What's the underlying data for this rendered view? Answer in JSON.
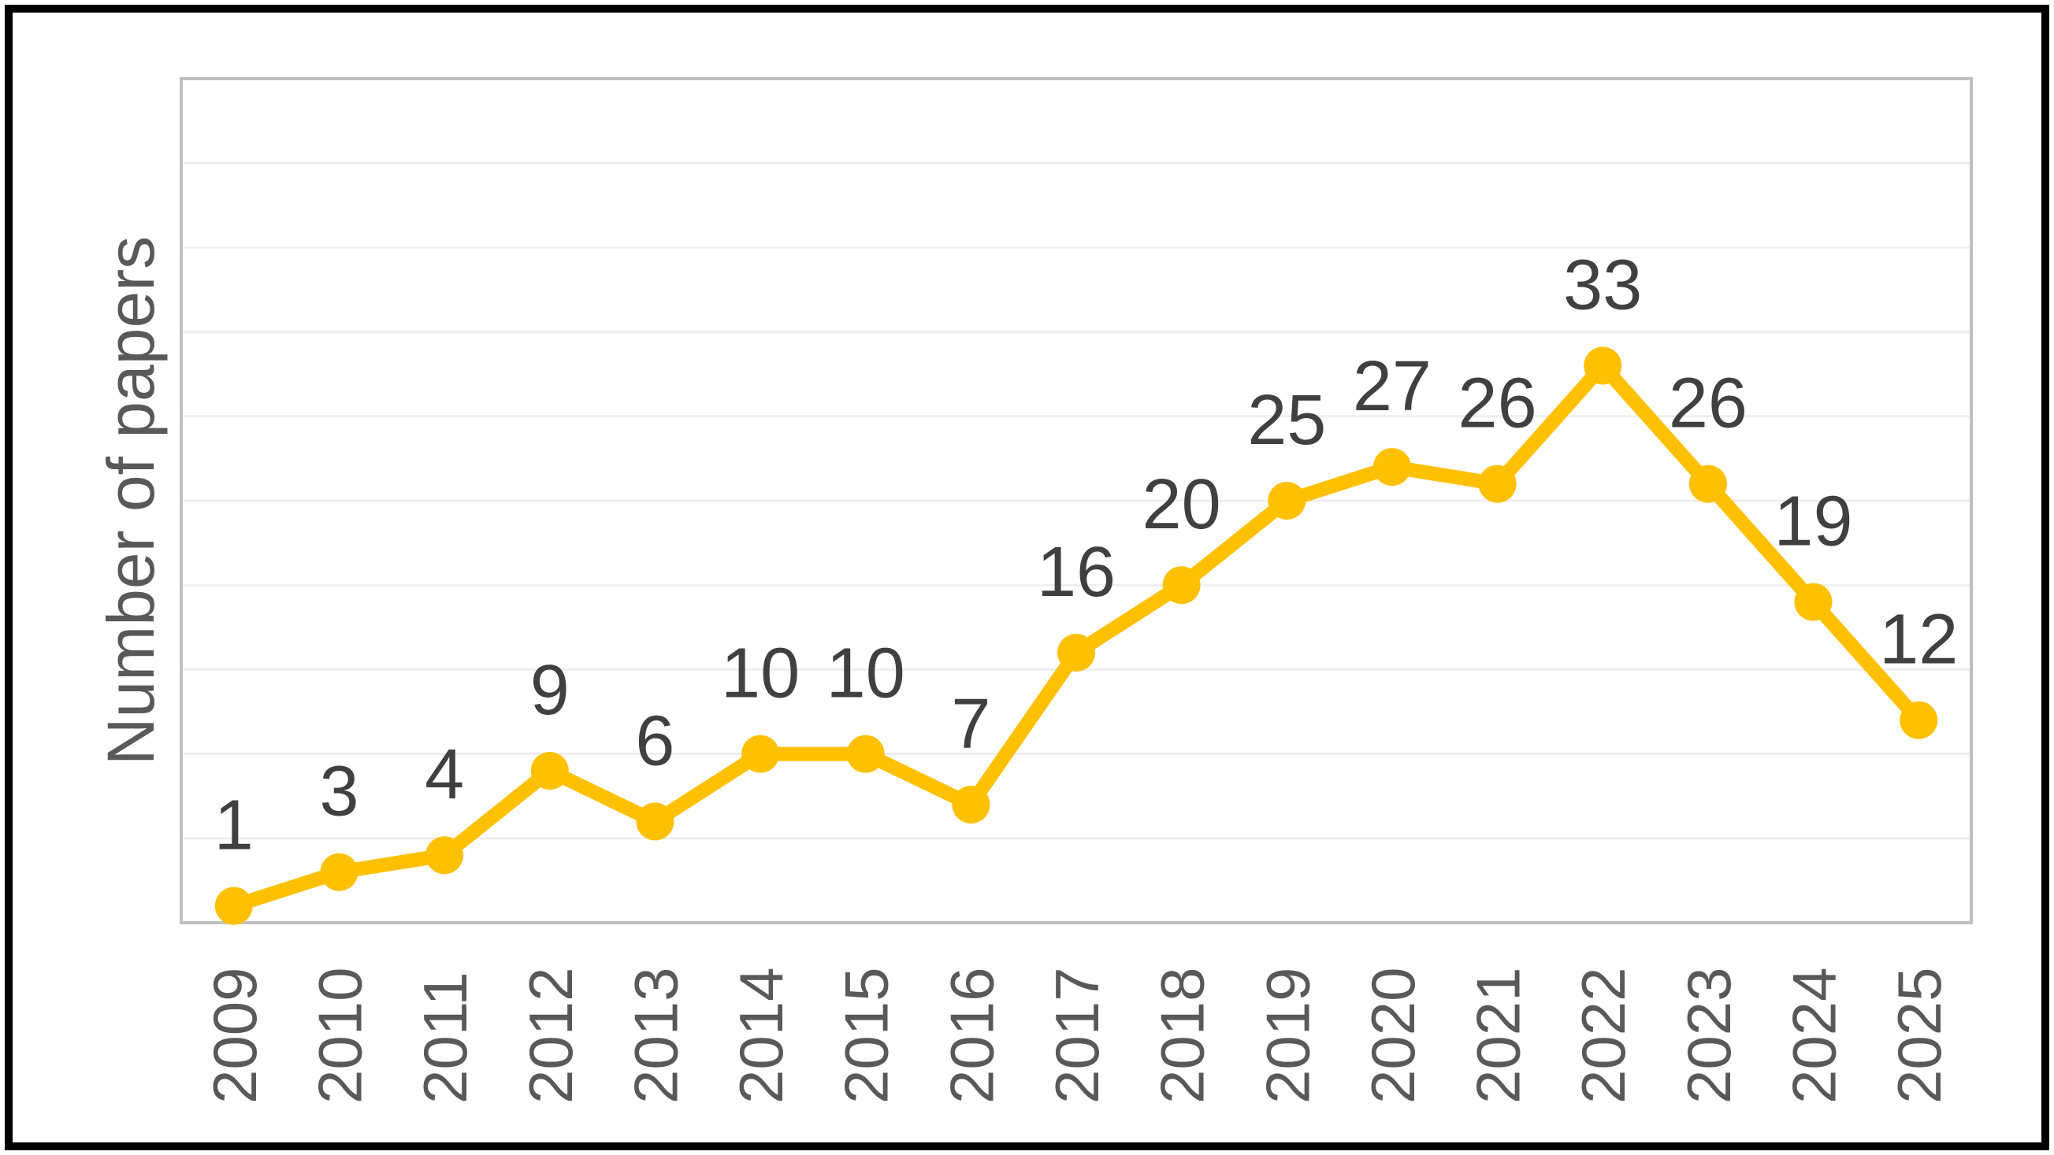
{
  "frame": {
    "border_color": "#000000",
    "background": "#FFFFFF"
  },
  "chart_data": {
    "type": "line",
    "title": "",
    "xlabel": "",
    "ylabel": "Number of papers",
    "categories": [
      "2009",
      "2010",
      "2011",
      "2012",
      "2013",
      "2014",
      "2015",
      "2016",
      "2017",
      "2018",
      "2019",
      "2020",
      "2021",
      "2022",
      "2023",
      "2024",
      "2025"
    ],
    "values": [
      1,
      3,
      4,
      9,
      6,
      10,
      10,
      7,
      16,
      20,
      25,
      27,
      26,
      33,
      26,
      19,
      12
    ],
    "data_labels": [
      1,
      3,
      4,
      9,
      6,
      10,
      10,
      7,
      16,
      20,
      25,
      27,
      26,
      33,
      26,
      19,
      12
    ],
    "ylim": [
      0,
      50
    ],
    "y_gridline_step": 5,
    "grid": true,
    "legend_position": "none",
    "x_label_rotation_degrees": -90,
    "line_color": "#FFC000",
    "marker_shape": "circle",
    "data_label_color": "#404040",
    "axis_label_color": "#595959",
    "gridline_color": "#EFEFEF",
    "plot_border_color": "#BFBFBF"
  }
}
